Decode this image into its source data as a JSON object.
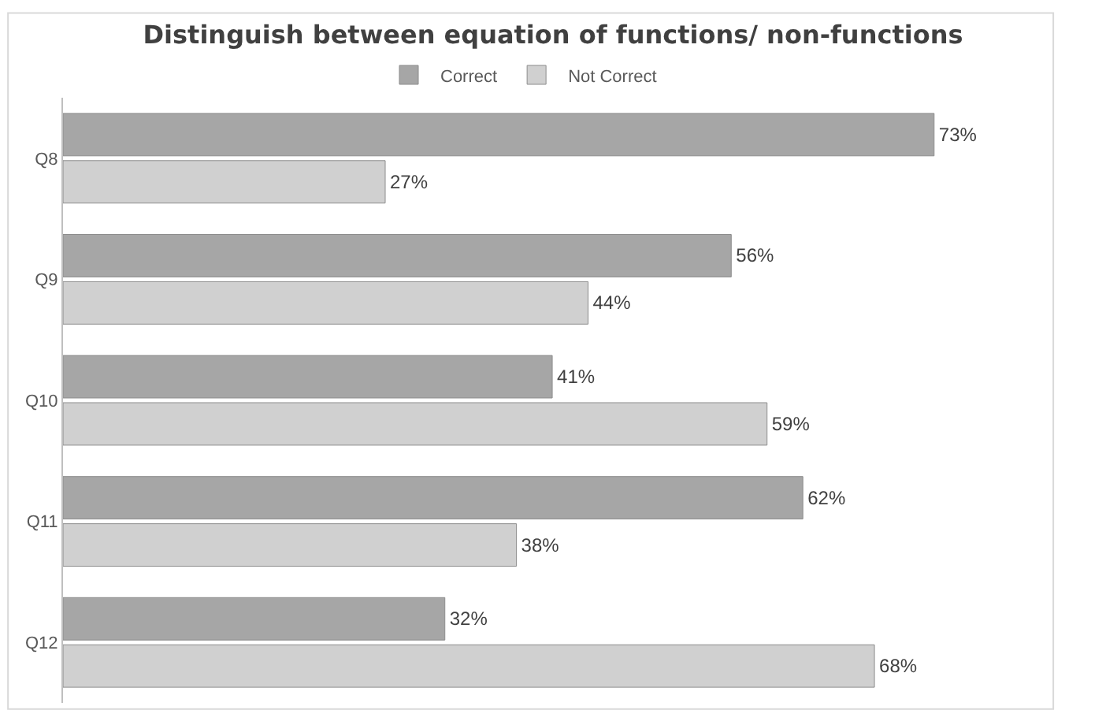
{
  "chart_data": {
    "type": "bar",
    "orientation": "horizontal",
    "title": "Distinguish between equation of functions/ non-functions",
    "categories": [
      "Q8",
      "Q9",
      "Q10",
      "Q11",
      "Q12"
    ],
    "series": [
      {
        "name": "Correct",
        "color": "#a6a6a6",
        "values": [
          73,
          56,
          41,
          62,
          32
        ],
        "value_labels": [
          "73%",
          "56%",
          "41%",
          "62%",
          "32%"
        ]
      },
      {
        "name": "Not Correct",
        "color": "#d0d0d0",
        "values": [
          27,
          44,
          59,
          38,
          68
        ],
        "value_labels": [
          "27%",
          "44%",
          "59%",
          "38%",
          "68%"
        ]
      }
    ],
    "legend": "top"
  }
}
